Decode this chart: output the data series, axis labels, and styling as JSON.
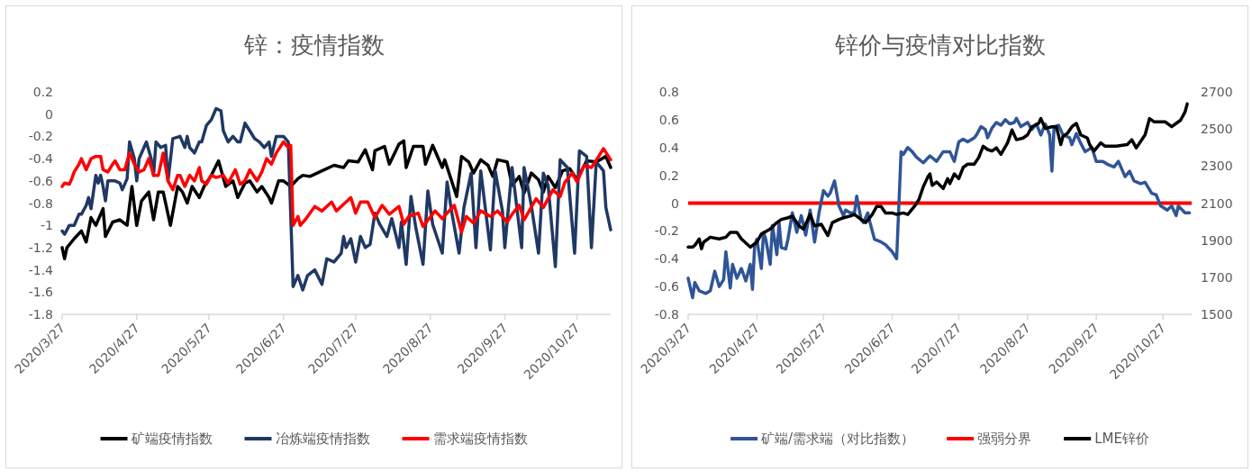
{
  "chart_data": [
    {
      "type": "line",
      "title": "锌：疫情指数",
      "legend": "bottom",
      "xlim": [
        "2020-03-27",
        "2020-11-10"
      ],
      "ylim": [
        -1.8,
        0.2
      ],
      "yticks": [
        -1.8,
        -1.6,
        -1.4,
        -1.2,
        -1,
        -0.8,
        -0.6,
        -0.4,
        -0.2,
        0,
        0.2
      ],
      "xticks": [
        {
          "value": "2020-03-27",
          "label": "2020/3/27"
        },
        {
          "value": "2020-04-27",
          "label": "2020/4/27"
        },
        {
          "value": "2020-05-27",
          "label": "2020/5/27"
        },
        {
          "value": "2020-06-27",
          "label": "2020/6/27"
        },
        {
          "value": "2020-07-27",
          "label": "2020/7/27"
        },
        {
          "value": "2020-08-27",
          "label": "2020/8/27"
        },
        {
          "value": "2020-09-27",
          "label": "2020/9/27"
        },
        {
          "value": "2020-10-27",
          "label": "2020/10/27"
        }
      ],
      "series": [
        {
          "name": "矿端疫情指数",
          "color": "#000000",
          "x": [
            "2020-03-27",
            "2020-03-28",
            "2020-03-29",
            "2020-04-01",
            "2020-04-04",
            "2020-04-06",
            "2020-04-08",
            "2020-04-10",
            "2020-04-13",
            "2020-04-14",
            "2020-04-17",
            "2020-04-20",
            "2020-04-23",
            "2020-04-25",
            "2020-04-27",
            "2020-04-29",
            "2020-05-02",
            "2020-05-04",
            "2020-05-06",
            "2020-05-08",
            "2020-05-11",
            "2020-05-14",
            "2020-05-16",
            "2020-05-18",
            "2020-05-20",
            "2020-05-23",
            "2020-05-25",
            "2020-05-28",
            "2020-05-31",
            "2020-06-03",
            "2020-06-06",
            "2020-06-08",
            "2020-06-11",
            "2020-06-13",
            "2020-06-16",
            "2020-06-18",
            "2020-06-21",
            "2020-06-22",
            "2020-06-25",
            "2020-06-27",
            "2020-06-30",
            "2020-07-03",
            "2020-07-05",
            "2020-07-08",
            "2020-07-12",
            "2020-07-18",
            "2020-07-22",
            "2020-07-24",
            "2020-07-28",
            "2020-07-31",
            "2020-08-03",
            "2020-08-04",
            "2020-08-08",
            "2020-08-10",
            "2020-08-14",
            "2020-08-16",
            "2020-08-17",
            "2020-08-20",
            "2020-08-24",
            "2020-08-25",
            "2020-08-28",
            "2020-09-01",
            "2020-09-02",
            "2020-09-07",
            "2020-09-09",
            "2020-09-12",
            "2020-09-14",
            "2020-09-17",
            "2020-09-20",
            "2020-09-22",
            "2020-09-24",
            "2020-09-28",
            "2020-09-30",
            "2020-10-03",
            "2020-10-05",
            "2020-10-08",
            "2020-10-11",
            "2020-10-13",
            "2020-10-15",
            "2020-10-18",
            "2020-10-21",
            "2020-10-24",
            "2020-10-27",
            "2020-10-31",
            "2020-11-04",
            "2020-11-08",
            "2020-11-10"
          ],
          "values": [
            -1.2,
            -1.3,
            -1.2,
            -1.12,
            -1.05,
            -1.15,
            -0.93,
            -1.0,
            -0.85,
            -1.1,
            -0.97,
            -0.95,
            -1.0,
            -0.65,
            -1.0,
            -0.78,
            -0.7,
            -0.95,
            -0.7,
            -0.7,
            -1.0,
            -0.65,
            -0.7,
            -0.8,
            -0.65,
            -0.75,
            -0.65,
            -0.55,
            -0.42,
            -0.65,
            -0.6,
            -0.75,
            -0.62,
            -0.6,
            -0.7,
            -0.65,
            -0.75,
            -0.8,
            -0.6,
            -0.6,
            -0.65,
            -0.58,
            -0.55,
            -0.56,
            -0.52,
            -0.46,
            -0.48,
            -0.42,
            -0.43,
            -0.32,
            -0.5,
            -0.33,
            -0.29,
            -0.45,
            -0.27,
            -0.24,
            -0.48,
            -0.29,
            -0.29,
            -0.45,
            -0.28,
            -0.48,
            -0.41,
            -0.74,
            -0.38,
            -0.43,
            -0.53,
            -0.41,
            -0.46,
            -0.56,
            -0.41,
            -0.43,
            -0.64,
            -0.56,
            -0.71,
            -0.53,
            -0.59,
            -0.7,
            -0.56,
            -0.66,
            -0.51,
            -0.49,
            -0.59,
            -0.42,
            -0.43,
            -0.38,
            -0.48
          ]
        },
        {
          "name": "冶炼端疫情指数",
          "color": "#203864",
          "x": [
            "2020-03-27",
            "2020-03-28",
            "2020-03-30",
            "2020-04-01",
            "2020-04-03",
            "2020-04-04",
            "2020-04-06",
            "2020-04-07",
            "2020-04-08",
            "2020-04-10",
            "2020-04-11",
            "2020-04-12",
            "2020-04-13",
            "2020-04-14",
            "2020-04-15",
            "2020-04-18",
            "2020-04-20",
            "2020-04-21",
            "2020-04-23",
            "2020-04-24",
            "2020-04-26",
            "2020-04-27",
            "2020-04-28",
            "2020-04-30",
            "2020-05-01",
            "2020-05-03",
            "2020-05-04",
            "2020-05-05",
            "2020-05-07",
            "2020-05-09",
            "2020-05-10",
            "2020-05-12",
            "2020-05-15",
            "2020-05-17",
            "2020-05-18",
            "2020-05-19",
            "2020-05-21",
            "2020-05-23",
            "2020-05-24",
            "2020-05-26",
            "2020-05-28",
            "2020-05-30",
            "2020-06-01",
            "2020-06-02",
            "2020-06-04",
            "2020-06-06",
            "2020-06-08",
            "2020-06-09",
            "2020-06-11",
            "2020-06-13",
            "2020-06-15",
            "2020-06-17",
            "2020-06-19",
            "2020-06-21",
            "2020-06-22",
            "2020-06-24",
            "2020-06-27",
            "2020-06-29",
            "2020-07-01",
            "2020-07-03",
            "2020-07-05",
            "2020-07-07",
            "2020-07-10",
            "2020-07-13",
            "2020-07-15",
            "2020-07-18",
            "2020-07-21",
            "2020-07-22",
            "2020-07-23",
            "2020-07-25",
            "2020-07-27",
            "2020-07-29",
            "2020-07-31",
            "2020-08-02",
            "2020-08-04",
            "2020-08-06",
            "2020-08-09",
            "2020-08-11",
            "2020-08-14",
            "2020-08-15",
            "2020-08-17",
            "2020-08-19",
            "2020-08-21",
            "2020-08-24",
            "2020-08-26",
            "2020-08-28",
            "2020-09-01",
            "2020-09-03",
            "2020-09-05",
            "2020-09-08",
            "2020-09-10",
            "2020-09-13",
            "2020-09-15",
            "2020-09-17",
            "2020-09-21",
            "2020-09-23",
            "2020-09-26",
            "2020-09-27",
            "2020-09-30",
            "2020-10-04",
            "2020-10-05",
            "2020-10-08",
            "2020-10-11",
            "2020-10-13",
            "2020-10-15",
            "2020-10-18",
            "2020-10-20",
            "2020-10-23",
            "2020-10-26",
            "2020-10-28",
            "2020-10-31",
            "2020-11-02",
            "2020-11-04",
            "2020-11-07",
            "2020-11-08",
            "2020-11-10"
          ],
          "values": [
            -1.05,
            -1.08,
            -1.0,
            -1.0,
            -0.9,
            -0.9,
            -0.82,
            -0.75,
            -0.85,
            -0.55,
            -0.62,
            -0.55,
            -0.65,
            -0.78,
            -0.6,
            -0.6,
            -0.62,
            -0.68,
            -0.58,
            -0.25,
            -0.4,
            -0.6,
            -0.4,
            -0.3,
            -0.25,
            -0.4,
            -0.55,
            -0.25,
            -0.3,
            -0.28,
            -0.6,
            -0.22,
            -0.2,
            -0.3,
            -0.2,
            -0.3,
            -0.35,
            -0.25,
            -0.25,
            -0.1,
            -0.05,
            0.05,
            0.03,
            -0.15,
            -0.25,
            -0.2,
            -0.25,
            -0.25,
            -0.08,
            -0.15,
            -0.22,
            -0.25,
            -0.3,
            -0.25,
            -0.38,
            -0.2,
            -0.2,
            -0.25,
            -1.55,
            -1.45,
            -1.58,
            -1.45,
            -1.4,
            -1.53,
            -1.3,
            -1.33,
            -1.25,
            -1.1,
            -1.2,
            -1.12,
            -1.33,
            -1.1,
            -1.2,
            -1.17,
            -0.89,
            -0.99,
            -1.1,
            -0.94,
            -1.2,
            -0.97,
            -1.35,
            -0.74,
            -1.02,
            -1.35,
            -0.69,
            -0.99,
            -1.25,
            -0.61,
            -0.89,
            -1.25,
            -0.84,
            -0.53,
            -1.2,
            -0.51,
            -1.22,
            -0.51,
            -0.87,
            -1.2,
            -0.48,
            -1.2,
            -0.48,
            -0.82,
            -1.25,
            -0.53,
            -0.64,
            -1.37,
            -0.41,
            -0.48,
            -1.25,
            -0.33,
            -0.38,
            -1.2,
            -0.43,
            -0.51,
            -0.84,
            -1.04
          ]
        },
        {
          "name": "需求端疫情指数",
          "color": "#ff0000",
          "x": [
            "2020-03-27",
            "2020-03-28",
            "2020-03-30",
            "2020-03-31",
            "2020-04-01",
            "2020-04-03",
            "2020-04-04",
            "2020-04-06",
            "2020-04-08",
            "2020-04-10",
            "2020-04-12",
            "2020-04-13",
            "2020-04-15",
            "2020-04-17",
            "2020-04-18",
            "2020-04-20",
            "2020-04-22",
            "2020-04-24",
            "2020-04-26",
            "2020-04-28",
            "2020-04-30",
            "2020-05-02",
            "2020-05-04",
            "2020-05-06",
            "2020-05-08",
            "2020-05-10",
            "2020-05-12",
            "2020-05-14",
            "2020-05-15",
            "2020-05-17",
            "2020-05-19",
            "2020-05-21",
            "2020-05-23",
            "2020-05-24",
            "2020-05-26",
            "2020-05-28",
            "2020-05-30",
            "2020-06-02",
            "2020-06-04",
            "2020-06-07",
            "2020-06-09",
            "2020-06-11",
            "2020-06-13",
            "2020-06-16",
            "2020-06-18",
            "2020-06-20",
            "2020-06-22",
            "2020-06-24",
            "2020-06-27",
            "2020-06-29",
            "2020-06-30",
            "2020-07-01",
            "2020-07-03",
            "2020-07-04",
            "2020-07-06",
            "2020-07-10",
            "2020-07-13",
            "2020-07-17",
            "2020-07-19",
            "2020-07-23",
            "2020-07-25",
            "2020-07-27",
            "2020-07-29",
            "2020-08-01",
            "2020-08-04",
            "2020-08-07",
            "2020-08-10",
            "2020-08-14",
            "2020-08-16",
            "2020-08-18",
            "2020-08-22",
            "2020-08-24",
            "2020-08-29",
            "2020-09-01",
            "2020-09-03",
            "2020-09-06",
            "2020-09-09",
            "2020-09-11",
            "2020-09-14",
            "2020-09-17",
            "2020-09-21",
            "2020-09-24",
            "2020-09-28",
            "2020-09-30",
            "2020-10-03",
            "2020-10-05",
            "2020-10-10",
            "2020-10-13",
            "2020-10-17",
            "2020-10-20",
            "2020-10-22",
            "2020-10-25",
            "2020-10-27",
            "2020-10-30",
            "2020-11-02",
            "2020-11-05",
            "2020-11-07",
            "2020-11-10"
          ],
          "values": [
            -0.65,
            -0.62,
            -0.63,
            -0.58,
            -0.52,
            -0.45,
            -0.4,
            -0.5,
            -0.4,
            -0.38,
            -0.38,
            -0.5,
            -0.52,
            -0.45,
            -0.42,
            -0.5,
            -0.5,
            -0.35,
            -0.45,
            -0.52,
            -0.5,
            -0.4,
            -0.55,
            -0.55,
            -0.35,
            -0.6,
            -0.68,
            -0.55,
            -0.55,
            -0.65,
            -0.55,
            -0.6,
            -0.48,
            -0.6,
            -0.63,
            -0.55,
            -0.57,
            -0.55,
            -0.62,
            -0.5,
            -0.63,
            -0.6,
            -0.5,
            -0.6,
            -0.52,
            -0.4,
            -0.45,
            -0.35,
            -0.25,
            -0.3,
            -0.28,
            -1.0,
            -0.92,
            -1.0,
            -0.95,
            -0.83,
            -0.87,
            -0.79,
            -0.87,
            -0.79,
            -0.75,
            -0.89,
            -0.79,
            -0.79,
            -0.93,
            -0.82,
            -0.9,
            -0.83,
            -0.99,
            -0.92,
            -0.89,
            -1.01,
            -0.87,
            -0.94,
            -0.89,
            -0.82,
            -1.06,
            -0.92,
            -0.98,
            -0.87,
            -0.92,
            -0.87,
            -0.97,
            -0.9,
            -0.82,
            -0.95,
            -0.76,
            -0.84,
            -0.68,
            -0.74,
            -0.61,
            -0.53,
            -0.61,
            -0.46,
            -0.48,
            -0.38,
            -0.31,
            -0.41
          ]
        }
      ]
    },
    {
      "type": "line",
      "title": "锌价与疫情对比指数",
      "legend": "bottom",
      "xlim": [
        "2020-03-27",
        "2020-11-09"
      ],
      "ylim": [
        -0.8,
        0.8
      ],
      "yticks": [
        -0.8,
        -0.6,
        -0.4,
        -0.2,
        0,
        0.2,
        0.4,
        0.6,
        0.8
      ],
      "y2lim": [
        1500,
        2700
      ],
      "y2ticks": [
        1500,
        1700,
        1900,
        2100,
        2300,
        2500,
        2700
      ],
      "xticks": [
        {
          "value": "2020-03-27",
          "label": "2020/3/27"
        },
        {
          "value": "2020-04-27",
          "label": "2020/4/27"
        },
        {
          "value": "2020-05-27",
          "label": "2020/5/27"
        },
        {
          "value": "2020-06-27",
          "label": "2020/6/27"
        },
        {
          "value": "2020-07-27",
          "label": "2020/7/27"
        },
        {
          "value": "2020-08-27",
          "label": "2020/8/27"
        },
        {
          "value": "2020-09-27",
          "label": "2020/9/27"
        },
        {
          "value": "2020-10-27",
          "label": "2020/10/27"
        }
      ],
      "ref_lines": [
        {
          "axis": "y",
          "value": 0,
          "label": "强弱分界",
          "color": "#ff0000"
        }
      ],
      "series": [
        {
          "name": "矿端/需求端（对比指数）",
          "color": "#2f5597",
          "x": [
            "2020-03-27",
            "2020-03-29",
            "2020-03-30",
            "2020-04-01",
            "2020-04-04",
            "2020-04-06",
            "2020-04-08",
            "2020-04-10",
            "2020-04-12",
            "2020-04-13",
            "2020-04-15",
            "2020-04-16",
            "2020-04-18",
            "2020-04-20",
            "2020-04-22",
            "2020-04-24",
            "2020-04-25",
            "2020-04-26",
            "2020-04-27",
            "2020-04-29",
            "2020-04-30",
            "2020-05-01",
            "2020-05-03",
            "2020-05-04",
            "2020-05-06",
            "2020-05-07",
            "2020-05-08",
            "2020-05-10",
            "2020-05-11",
            "2020-05-13",
            "2020-05-15",
            "2020-05-17",
            "2020-05-19",
            "2020-05-21",
            "2020-05-23",
            "2020-05-25",
            "2020-05-27",
            "2020-05-29",
            "2020-05-30",
            "2020-06-01",
            "2020-06-03",
            "2020-06-05",
            "2020-06-06",
            "2020-06-08",
            "2020-06-10",
            "2020-06-11",
            "2020-06-13",
            "2020-06-14",
            "2020-06-16",
            "2020-06-17",
            "2020-06-19",
            "2020-06-22",
            "2020-06-24",
            "2020-06-27",
            "2020-06-29",
            "2020-07-01",
            "2020-07-02",
            "2020-07-04",
            "2020-07-06",
            "2020-07-08",
            "2020-07-11",
            "2020-07-14",
            "2020-07-17",
            "2020-07-20",
            "2020-07-23",
            "2020-07-25",
            "2020-07-27",
            "2020-07-29",
            "2020-07-31",
            "2020-08-03",
            "2020-08-04",
            "2020-08-06",
            "2020-08-08",
            "2020-08-09",
            "2020-08-11",
            "2020-08-13",
            "2020-08-15",
            "2020-08-17",
            "2020-08-19",
            "2020-08-21",
            "2020-08-22",
            "2020-08-24",
            "2020-08-27",
            "2020-08-29",
            "2020-08-31",
            "2020-09-02",
            "2020-09-04",
            "2020-09-06",
            "2020-09-07",
            "2020-09-08",
            "2020-09-10",
            "2020-09-12",
            "2020-09-15",
            "2020-09-16",
            "2020-09-18",
            "2020-09-20",
            "2020-09-22",
            "2020-09-25",
            "2020-09-27",
            "2020-09-30",
            "2020-10-02",
            "2020-10-05",
            "2020-10-07",
            "2020-10-10",
            "2020-10-12",
            "2020-10-14",
            "2020-10-17",
            "2020-10-19",
            "2020-10-22",
            "2020-10-24",
            "2020-10-26",
            "2020-10-29",
            "2020-10-31",
            "2020-11-02",
            "2020-11-03",
            "2020-11-06",
            "2020-11-08"
          ],
          "values": [
            -0.54,
            -0.68,
            -0.57,
            -0.63,
            -0.65,
            -0.63,
            -0.49,
            -0.6,
            -0.55,
            -0.35,
            -0.61,
            -0.44,
            -0.54,
            -0.47,
            -0.56,
            -0.44,
            -0.62,
            -0.3,
            -0.26,
            -0.47,
            -0.21,
            -0.26,
            -0.44,
            -0.16,
            -0.37,
            -0.14,
            -0.32,
            -0.33,
            -0.26,
            -0.07,
            -0.21,
            -0.09,
            -0.23,
            -0.05,
            -0.28,
            -0.07,
            0.09,
            0.05,
            0.07,
            0.16,
            -0.02,
            -0.09,
            -0.05,
            -0.07,
            -0.07,
            0.05,
            -0.12,
            -0.14,
            -0.07,
            -0.14,
            -0.26,
            -0.28,
            -0.3,
            -0.35,
            -0.4,
            0.37,
            0.35,
            0.4,
            0.37,
            0.33,
            0.29,
            0.34,
            0.3,
            0.37,
            0.37,
            0.3,
            0.44,
            0.46,
            0.44,
            0.47,
            0.49,
            0.55,
            0.53,
            0.47,
            0.54,
            0.58,
            0.56,
            0.6,
            0.57,
            0.58,
            0.61,
            0.55,
            0.58,
            0.53,
            0.57,
            0.49,
            0.57,
            0.49,
            0.23,
            0.55,
            0.56,
            0.49,
            0.47,
            0.42,
            0.5,
            0.43,
            0.37,
            0.4,
            0.3,
            0.3,
            0.28,
            0.26,
            0.3,
            0.19,
            0.23,
            0.16,
            0.14,
            0.15,
            0.07,
            0.06,
            -0.02,
            -0.05,
            -0.02,
            -0.09,
            -0.02,
            -0.07,
            -0.07
          ]
        },
        {
          "name": "LME锌价",
          "color": "#000000",
          "axis": "y2",
          "x": [
            "2020-03-27",
            "2020-03-29",
            "2020-03-30",
            "2020-04-01",
            "2020-04-02",
            "2020-04-03",
            "2020-04-06",
            "2020-04-10",
            "2020-04-13",
            "2020-04-15",
            "2020-04-18",
            "2020-04-20",
            "2020-04-24",
            "2020-04-27",
            "2020-04-29",
            "2020-05-03",
            "2020-05-06",
            "2020-05-08",
            "2020-05-11",
            "2020-05-13",
            "2020-05-16",
            "2020-05-18",
            "2020-05-21",
            "2020-05-23",
            "2020-05-26",
            "2020-05-29",
            "2020-05-31",
            "2020-06-03",
            "2020-06-05",
            "2020-06-08",
            "2020-06-10",
            "2020-06-13",
            "2020-06-15",
            "2020-06-18",
            "2020-06-20",
            "2020-06-22",
            "2020-06-24",
            "2020-06-27",
            "2020-06-29",
            "2020-07-02",
            "2020-07-04",
            "2020-07-07",
            "2020-07-09",
            "2020-07-11",
            "2020-07-13",
            "2020-07-14",
            "2020-07-15",
            "2020-07-17",
            "2020-07-20",
            "2020-07-22",
            "2020-07-23",
            "2020-07-25",
            "2020-07-27",
            "2020-07-29",
            "2020-07-31",
            "2020-08-03",
            "2020-08-05",
            "2020-08-07",
            "2020-08-09",
            "2020-08-11",
            "2020-08-13",
            "2020-08-15",
            "2020-08-18",
            "2020-08-20",
            "2020-08-22",
            "2020-08-25",
            "2020-08-27",
            "2020-08-29",
            "2020-09-01",
            "2020-09-02",
            "2020-09-04",
            "2020-09-07",
            "2020-09-09",
            "2020-09-11",
            "2020-09-12",
            "2020-09-14",
            "2020-09-16",
            "2020-09-18",
            "2020-09-20",
            "2020-09-23",
            "2020-09-24",
            "2020-09-26",
            "2020-09-29",
            "2020-10-01",
            "2020-10-06",
            "2020-10-11",
            "2020-10-13",
            "2020-10-15",
            "2020-10-17",
            "2020-10-19",
            "2020-10-21",
            "2020-10-23",
            "2020-10-26",
            "2020-10-28",
            "2020-10-31",
            "2020-11-02",
            "2020-11-04",
            "2020-11-06",
            "2020-11-07"
          ],
          "values": [
            1863,
            1863,
            1872,
            1907,
            1854,
            1890,
            1916,
            1907,
            1916,
            1942,
            1942,
            1907,
            1863,
            1890,
            1933,
            1960,
            1995,
            2012,
            2021,
            2030,
            1977,
            1960,
            2039,
            1977,
            1986,
            1925,
            1995,
            2012,
            2021,
            2030,
            2039,
            2012,
            1995,
            2039,
            2082,
            2082,
            2047,
            2047,
            2039,
            2047,
            2039,
            2082,
            2118,
            2188,
            2240,
            2258,
            2196,
            2214,
            2179,
            2232,
            2205,
            2258,
            2232,
            2293,
            2310,
            2310,
            2346,
            2407,
            2389,
            2381,
            2398,
            2363,
            2425,
            2495,
            2442,
            2451,
            2468,
            2512,
            2530,
            2556,
            2503,
            2512,
            2512,
            2416,
            2460,
            2477,
            2512,
            2530,
            2468,
            2451,
            2416,
            2381,
            2425,
            2407,
            2407,
            2416,
            2442,
            2398,
            2433,
            2468,
            2556,
            2539,
            2539,
            2539,
            2512,
            2530,
            2547,
            2591,
            2635
          ]
        }
      ]
    }
  ]
}
